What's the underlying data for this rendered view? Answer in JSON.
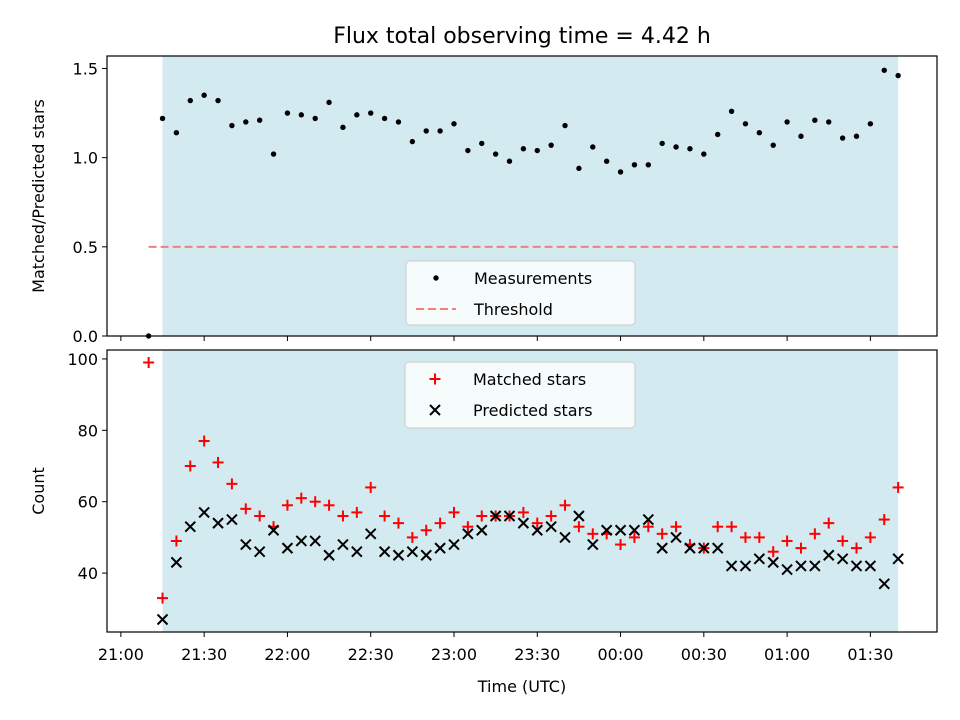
{
  "colors": {
    "shade": "#d3eaf0",
    "measure": "#000000",
    "threshold": "#f08080",
    "matched": "#ff0000",
    "predicted": "#000000"
  },
  "chart_data": {
    "type": "scatter",
    "title": "Flux total observing time = 4.42 h",
    "xlabel": "Time (UTC)",
    "x_ticks": [
      "21:00",
      "21:30",
      "22:00",
      "22:30",
      "23:00",
      "23:30",
      "00:00",
      "00:30",
      "01:00",
      "01:30"
    ],
    "x_tick_minutes": [
      0,
      30,
      60,
      90,
      120,
      150,
      180,
      210,
      240,
      270
    ],
    "xlim_minutes": [
      -5,
      294
    ],
    "shaded_span_minutes": [
      15,
      280
    ],
    "time_minutes": [
      10,
      15,
      20,
      25,
      30,
      35,
      40,
      45,
      50,
      55,
      60,
      65,
      70,
      75,
      80,
      85,
      90,
      95,
      100,
      105,
      110,
      115,
      120,
      125,
      130,
      135,
      140,
      145,
      150,
      155,
      160,
      165,
      170,
      175,
      180,
      185,
      190,
      195,
      200,
      205,
      210,
      215,
      220,
      225,
      230,
      235,
      240,
      245,
      250,
      255,
      260,
      265,
      270,
      275,
      280
    ],
    "panels": [
      {
        "ylabel": "Matched/Predicted stars",
        "ylim": [
          0,
          1.57
        ],
        "yticks": [
          0.0,
          0.5,
          1.0,
          1.5
        ],
        "ytick_labels": [
          "0.0",
          "0.5",
          "1.0",
          "1.5"
        ],
        "legend": {
          "position": "lower center",
          "entries": [
            "Measurements",
            "Threshold"
          ]
        },
        "threshold": 0.5,
        "threshold_x_minutes": [
          10,
          280
        ],
        "series": [
          {
            "name": "Measurements",
            "marker": "dot",
            "values": [
              0.0,
              1.22,
              1.14,
              1.32,
              1.35,
              1.32,
              1.18,
              1.2,
              1.21,
              1.02,
              1.25,
              1.24,
              1.22,
              1.31,
              1.17,
              1.24,
              1.25,
              1.22,
              1.2,
              1.09,
              1.15,
              1.15,
              1.19,
              1.04,
              1.08,
              1.02,
              0.98,
              1.05,
              1.04,
              1.07,
              1.18,
              0.94,
              1.06,
              0.98,
              0.92,
              0.96,
              0.96,
              1.08,
              1.06,
              1.05,
              1.02,
              1.13,
              1.26,
              1.19,
              1.14,
              1.07,
              1.2,
              1.12,
              1.21,
              1.2,
              1.11,
              1.12,
              1.19,
              1.49,
              1.46
            ]
          }
        ]
      },
      {
        "ylabel": "Count",
        "ylim": [
          23.5,
          102.5
        ],
        "yticks": [
          40,
          60,
          80,
          100
        ],
        "ytick_labels": [
          "40",
          "60",
          "80",
          "100"
        ],
        "legend": {
          "position": "upper center",
          "entries": [
            "Matched stars",
            "Predicted stars"
          ]
        },
        "series": [
          {
            "name": "Matched stars",
            "marker": "plus",
            "values": [
              99,
              33,
              49,
              70,
              77,
              71,
              65,
              58,
              56,
              53,
              59,
              61,
              60,
              59,
              56,
              57,
              64,
              56,
              54,
              50,
              52,
              54,
              57,
              53,
              56,
              56,
              56,
              57,
              54,
              56,
              59,
              53,
              51,
              51,
              48,
              50,
              53,
              51,
              53,
              48,
              47,
              53,
              53,
              50,
              50,
              46,
              49,
              47,
              51,
              54,
              49,
              47,
              50,
              55,
              64
            ]
          },
          {
            "name": "Predicted stars",
            "marker": "x",
            "values": [
              null,
              27,
              43,
              53,
              57,
              54,
              55,
              48,
              46,
              52,
              47,
              49,
              49,
              45,
              48,
              46,
              51,
              46,
              45,
              46,
              45,
              47,
              48,
              51,
              52,
              56,
              56,
              54,
              52,
              53,
              50,
              56,
              48,
              52,
              52,
              52,
              55,
              47,
              50,
              47,
              47,
              47,
              42,
              42,
              44,
              43,
              41,
              42,
              42,
              45,
              44,
              42,
              42,
              37,
              44
            ]
          }
        ]
      }
    ]
  }
}
